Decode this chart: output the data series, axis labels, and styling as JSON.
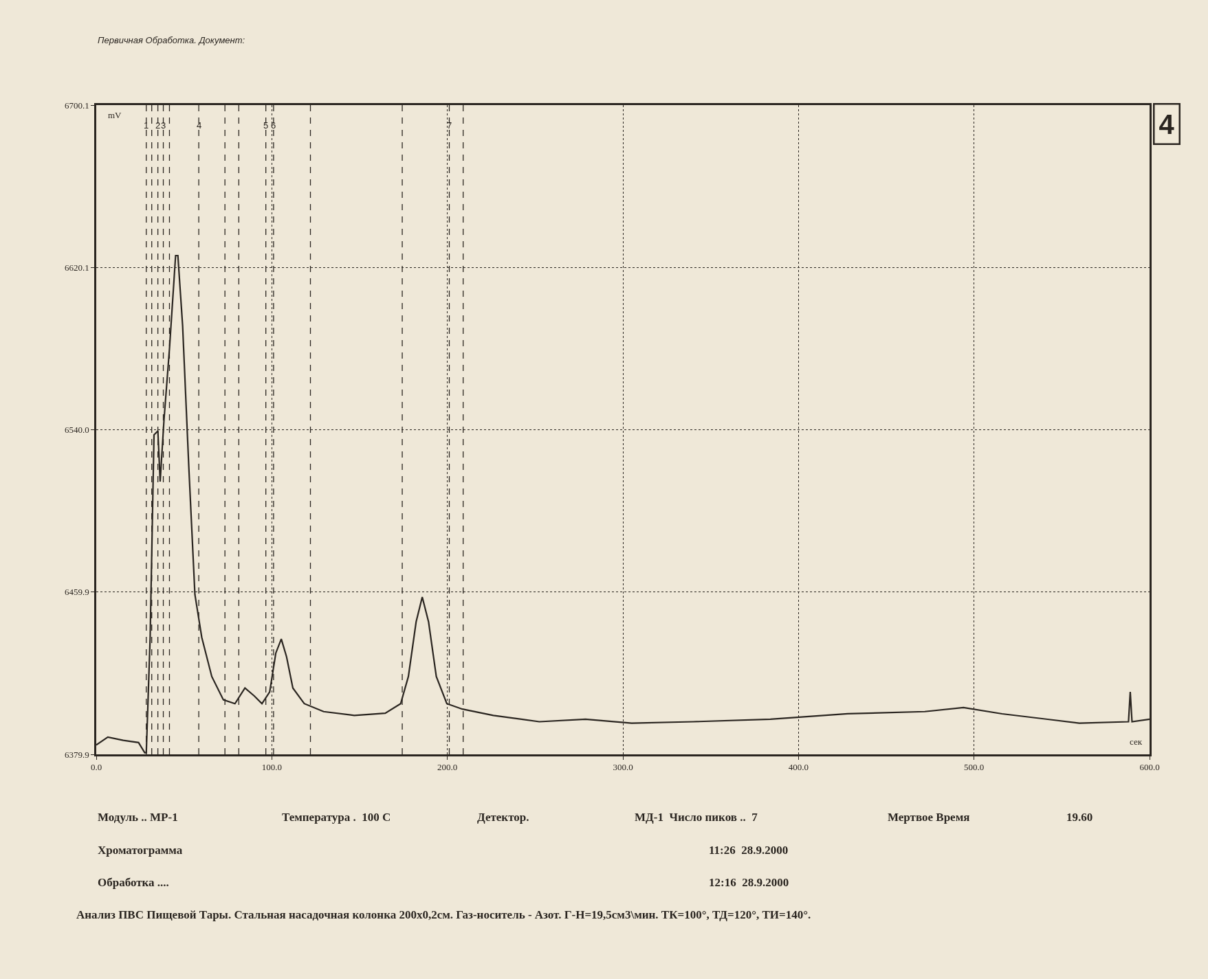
{
  "chart_data": {
    "type": "line",
    "title": "Первичная Обработка. Документ:",
    "xlabel": "сек",
    "ylabel": "mV",
    "x": [
      0,
      6.6,
      15.4,
      24.1,
      27.6,
      28.5,
      30.7,
      32.9,
      35.1,
      36.4,
      38.6,
      41.7,
      45.2,
      46.5,
      49.2,
      52.7,
      56.2,
      60.1,
      65.8,
      72.4,
      79,
      84.7,
      90,
      94.4,
      98.8,
      102.3,
      105.4,
      108.4,
      112,
      118.5,
      129.5,
      147,
      164.6,
      173.4,
      177.8,
      182.2,
      185.7,
      189.3,
      193.7,
      199.7,
      208.6,
      226.2,
      252.4,
      278.7,
      305,
      340,
      384,
      428,
      472,
      494,
      516,
      560,
      588,
      589,
      590,
      600
    ],
    "series": [
      {
        "color": "#2a2520",
        "values": [
          6384.5,
          6388.4,
          6386.8,
          6385.7,
          6380.7,
          6380.7,
          6437.6,
          6537.5,
          6539.4,
          6514.4,
          6545.0,
          6579.8,
          6625.9,
          6625.9,
          6591.3,
          6522.1,
          6458.7,
          6437.6,
          6418.3,
          6406.8,
          6404.9,
          6412.6,
          6408.7,
          6404.9,
          6410.7,
          6429.9,
          6436.8,
          6428.0,
          6412.6,
          6404.9,
          6401.0,
          6399.1,
          6400.2,
          6404.9,
          6418.3,
          6445.2,
          6457.5,
          6445.2,
          6418.3,
          6404.9,
          6402.2,
          6399.1,
          6396.0,
          6397.2,
          6395.3,
          6396.0,
          6397.2,
          6399.9,
          6401.0,
          6403.0,
          6399.9,
          6395.3,
          6396.0,
          6410.7,
          6396.0,
          6397.2
        ]
      }
    ],
    "xlim": [
      0,
      600
    ],
    "ylim": [
      6379.9,
      6700.1
    ],
    "xticks": [
      {
        "value": 0,
        "label": "0.0"
      },
      {
        "value": 100,
        "label": "100.0"
      },
      {
        "value": 200,
        "label": "200.0"
      },
      {
        "value": 300,
        "label": "300.0"
      },
      {
        "value": 400,
        "label": "400.0"
      },
      {
        "value": 500,
        "label": "500.0"
      },
      {
        "value": 600,
        "label": "600.0"
      }
    ],
    "yticks": [
      6379.9,
      6459.9,
      {
        "value": 6540,
        "label": "6540.0"
      },
      6620.1,
      6700.1
    ],
    "grid": true,
    "marker": "none",
    "line_style": "solid",
    "ref_lines": [
      {
        "axis": "x",
        "value": 28.5,
        "line_style": "dashed"
      },
      {
        "axis": "x",
        "value": 31.6,
        "line_style": "dashed"
      },
      {
        "axis": "x",
        "value": 35.1,
        "line_style": "dashed"
      },
      {
        "axis": "x",
        "value": 38.2,
        "line_style": "dashed"
      },
      {
        "axis": "x",
        "value": 41.7,
        "line_style": "dashed"
      },
      {
        "axis": "x",
        "value": 58.4,
        "line_style": "dashed"
      },
      {
        "axis": "x",
        "value": 73.3,
        "line_style": "dashed"
      },
      {
        "axis": "x",
        "value": 81.2,
        "line_style": "dashed"
      },
      {
        "axis": "x",
        "value": 96.6,
        "line_style": "dashed"
      },
      {
        "axis": "x",
        "value": 101.0,
        "line_style": "dashed"
      },
      {
        "axis": "x",
        "value": 122.0,
        "line_style": "dashed"
      },
      {
        "axis": "x",
        "value": 174.3,
        "line_style": "dashed"
      },
      {
        "axis": "x",
        "value": 201.1,
        "line_style": "dashed"
      },
      {
        "axis": "x",
        "value": 209.0,
        "line_style": "dashed"
      }
    ],
    "annotations": [
      {
        "text": "1",
        "x": 28.5,
        "y": 6690
      },
      {
        "text": "2",
        "x": 35.1,
        "y": 6690
      },
      {
        "text": "3",
        "x": 38.2,
        "y": 6690
      },
      {
        "text": "4",
        "x": 58.4,
        "y": 6690
      },
      {
        "text": "5",
        "x": 96.6,
        "y": 6690
      },
      {
        "text": "6",
        "x": 101.0,
        "y": 6690
      },
      {
        "text": "7",
        "x": 201.1,
        "y": 6690
      },
      "4",
      "Модуль .. MP-1",
      "Температура .  100 C",
      "Детектор.",
      "МД-1  Число пиков ..  7",
      "Мертвое Время",
      "19.60",
      "Хроматограмма",
      "11:26  28.9.2000",
      "Обработка ....",
      "12:16  28.9.2000",
      "Анализ ПВС Пищевой Тары. Стальная насадочная колонка 200х0,2см. Газ-носитель - Азот. Г-Н=19,5см3\\мин. ТК=100°, ТД=120°, ТИ=140°."
    ]
  }
}
